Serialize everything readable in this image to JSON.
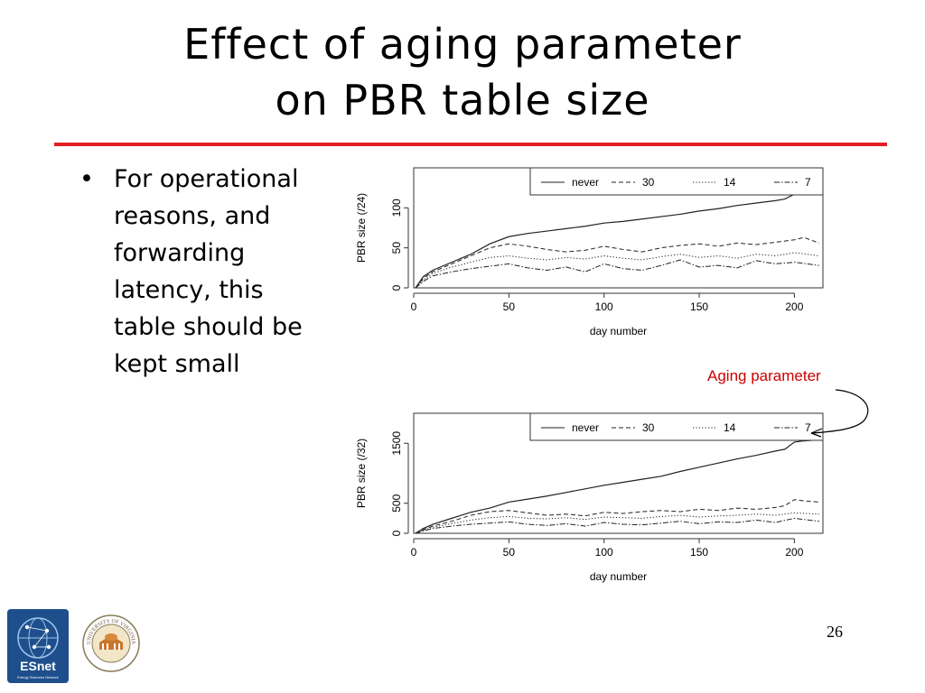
{
  "slide": {
    "title_line1": "Effect of aging parameter",
    "title_line2": "on PBR table size",
    "bullet": "For operational reasons, and forwarding latency, this table should be kept small",
    "annotation": "Aging parameter",
    "page_number": "26",
    "accent_color": "#e31e24",
    "logo_esnet_text": "ESnet",
    "logo_esnet_subtext": "Energy Sciences Network",
    "logo_uva_text": "UNIVERSITY OF VIRGINIA"
  },
  "chart_data": [
    {
      "type": "line",
      "xlabel": "day number",
      "ylabel": "PBR size (/24)",
      "xlim": [
        0,
        215
      ],
      "ylim": [
        0,
        150
      ],
      "xticks": [
        0,
        50,
        100,
        150,
        200
      ],
      "yticks": [
        0,
        50,
        100
      ],
      "legend_position": "top-right",
      "series": [
        {
          "name": "never",
          "dash": "solid",
          "x": [
            1,
            5,
            10,
            20,
            30,
            40,
            50,
            60,
            70,
            80,
            90,
            100,
            110,
            120,
            130,
            140,
            150,
            160,
            170,
            180,
            190,
            195,
            200,
            205,
            213
          ],
          "y": [
            0,
            14,
            22,
            32,
            42,
            55,
            64,
            68,
            71,
            74,
            77,
            81,
            83,
            86,
            89,
            92,
            96,
            99,
            103,
            106,
            109,
            111,
            117,
            119,
            120
          ]
        },
        {
          "name": "30",
          "dash": "dashed",
          "x": [
            1,
            5,
            10,
            20,
            30,
            40,
            50,
            60,
            70,
            80,
            90,
            100,
            110,
            120,
            130,
            140,
            150,
            160,
            170,
            180,
            190,
            200,
            205,
            213
          ],
          "y": [
            0,
            12,
            20,
            30,
            40,
            50,
            55,
            52,
            48,
            45,
            47,
            52,
            48,
            45,
            50,
            53,
            55,
            52,
            56,
            54,
            57,
            60,
            63,
            56
          ]
        },
        {
          "name": "14",
          "dash": "dotted",
          "x": [
            1,
            5,
            10,
            20,
            30,
            40,
            50,
            60,
            70,
            80,
            90,
            100,
            110,
            120,
            130,
            140,
            150,
            160,
            170,
            180,
            190,
            200,
            213
          ],
          "y": [
            0,
            10,
            18,
            26,
            32,
            38,
            40,
            37,
            35,
            38,
            36,
            40,
            37,
            35,
            39,
            42,
            38,
            40,
            37,
            42,
            40,
            44,
            40
          ]
        },
        {
          "name": "7",
          "dash": "dashdot",
          "x": [
            1,
            5,
            10,
            20,
            30,
            40,
            50,
            60,
            70,
            80,
            90,
            100,
            110,
            120,
            130,
            140,
            150,
            160,
            170,
            180,
            190,
            200,
            213
          ],
          "y": [
            0,
            8,
            15,
            20,
            24,
            27,
            30,
            25,
            22,
            26,
            20,
            30,
            24,
            22,
            28,
            35,
            26,
            28,
            25,
            34,
            30,
            32,
            28
          ]
        }
      ]
    },
    {
      "type": "line",
      "xlabel": "day number",
      "ylabel": "PBR size (/32)",
      "xlim": [
        0,
        215
      ],
      "ylim": [
        0,
        2000
      ],
      "xticks": [
        0,
        50,
        100,
        150,
        200
      ],
      "yticks": [
        0,
        500,
        1500
      ],
      "legend_position": "top-right",
      "series": [
        {
          "name": "never",
          "dash": "solid",
          "x": [
            1,
            5,
            10,
            20,
            30,
            40,
            50,
            60,
            70,
            80,
            90,
            100,
            110,
            120,
            130,
            140,
            150,
            160,
            170,
            180,
            190,
            195,
            200,
            205,
            213
          ],
          "y": [
            0,
            80,
            150,
            250,
            350,
            420,
            520,
            570,
            620,
            680,
            740,
            800,
            850,
            900,
            950,
            1030,
            1100,
            1170,
            1240,
            1300,
            1370,
            1400,
            1520,
            1540,
            1560
          ]
        },
        {
          "name": "30",
          "dash": "dashed",
          "x": [
            1,
            5,
            10,
            20,
            30,
            40,
            50,
            60,
            70,
            80,
            90,
            100,
            110,
            120,
            130,
            140,
            150,
            160,
            170,
            180,
            190,
            195,
            200,
            205,
            213
          ],
          "y": [
            0,
            60,
            120,
            200,
            300,
            360,
            380,
            340,
            300,
            320,
            290,
            350,
            330,
            360,
            380,
            360,
            400,
            380,
            420,
            400,
            430,
            460,
            560,
            540,
            520
          ]
        },
        {
          "name": "14",
          "dash": "dotted",
          "x": [
            1,
            5,
            10,
            20,
            30,
            40,
            50,
            60,
            70,
            80,
            90,
            100,
            110,
            120,
            130,
            140,
            150,
            160,
            170,
            180,
            190,
            200,
            213
          ],
          "y": [
            0,
            50,
            100,
            160,
            220,
            260,
            280,
            250,
            240,
            260,
            230,
            270,
            260,
            250,
            280,
            300,
            270,
            290,
            300,
            320,
            300,
            340,
            320
          ]
        },
        {
          "name": "7",
          "dash": "dashdot",
          "x": [
            1,
            5,
            10,
            20,
            30,
            40,
            50,
            60,
            70,
            80,
            90,
            100,
            110,
            120,
            130,
            140,
            150,
            160,
            170,
            180,
            190,
            200,
            213
          ],
          "y": [
            0,
            40,
            80,
            120,
            150,
            170,
            190,
            150,
            130,
            160,
            120,
            180,
            150,
            140,
            170,
            200,
            160,
            190,
            180,
            220,
            180,
            250,
            200
          ]
        }
      ]
    }
  ]
}
